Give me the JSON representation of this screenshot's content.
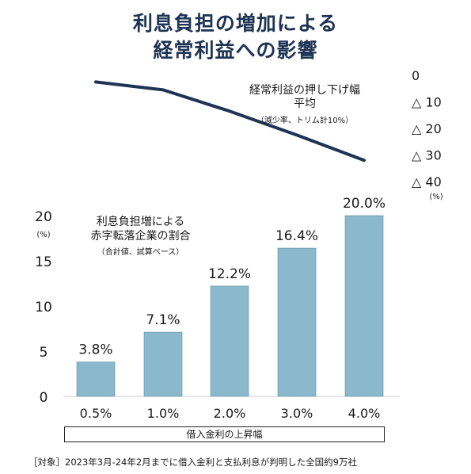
{
  "title": [
    "利息負担の増加による",
    "経常利益への影響"
  ],
  "line_note": {
    "main": [
      "経常利益の押し下げ幅",
      "平均"
    ],
    "sub": "（減少率、トリム計10%）"
  },
  "bar_note": {
    "main": [
      "利息負担増による",
      "赤字転落企業の割合"
    ],
    "sub": "（合計値、試算ベース）"
  },
  "footer": "［対象］2023年3月-24年2月までに借入金利と支払利息が判明した全国約9万社",
  "colors": {
    "bar": "#8ab8cc",
    "line": "#1f3354",
    "title": "#1f3354"
  },
  "chart_data": [
    {
      "type": "bar",
      "title": "",
      "categories": [
        "0.5%",
        "1.0%",
        "2.0%",
        "3.0%",
        "4.0%"
      ],
      "values": [
        3.8,
        7.1,
        12.2,
        16.4,
        20.0
      ],
      "data_labels": [
        "3.8%",
        "7.1%",
        "12.2%",
        "16.4%",
        "20.0%"
      ],
      "xlabel": "借入金利の上昇幅",
      "ylabel": "(%)",
      "yticks": [
        "0",
        "5",
        "10",
        "15",
        "20"
      ],
      "ylim": [
        0,
        20
      ],
      "grid": false
    },
    {
      "type": "line",
      "categories": [
        "0.5%",
        "1.0%",
        "2.0%",
        "3.0%",
        "4.0%"
      ],
      "values": [
        -2.5,
        -5.5,
        -13.5,
        -22.5,
        -32.0
      ],
      "axis": "right",
      "ylabel": "(%)",
      "yticks": [
        "0",
        "△ 10",
        "△ 20",
        "△ 30",
        "△ 40"
      ],
      "ylim": [
        -40,
        0
      ],
      "grid": false
    }
  ]
}
